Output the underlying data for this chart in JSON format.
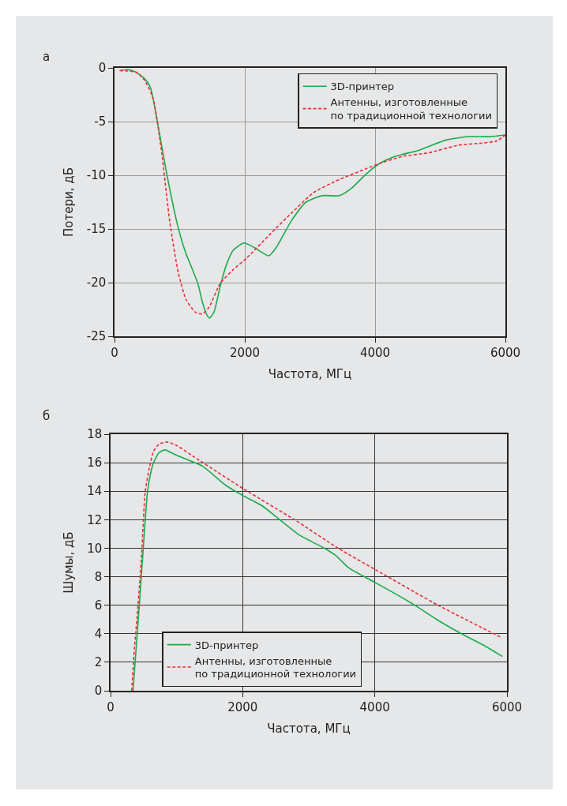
{
  "chart_data": [
    {
      "type": "line",
      "title": "а",
      "xlabel": "Частота, МГц",
      "ylabel": "Потери, дБ",
      "xlim": [
        0,
        6000
      ],
      "xticks": [
        0,
        2000,
        4000,
        6000
      ],
      "ylim": [
        -25,
        0
      ],
      "yticks": [
        0,
        -5,
        -10,
        -15,
        -20,
        -25
      ],
      "grid": true,
      "legend": "top right",
      "series": [
        {
          "name": "3D-принтер",
          "color": "#1aab4b",
          "line_style": "solid",
          "x": [
            80,
            200,
            330,
            460,
            550,
            640,
            790,
            970,
            1080,
            1280,
            1340,
            1400,
            1460,
            1530,
            1620,
            1720,
            1820,
            1990,
            2150,
            2370,
            2480,
            2720,
            2940,
            3190,
            3450,
            3640,
            3860,
            4070,
            4300,
            4660,
            4830,
            5100,
            5440,
            5760,
            6000
          ],
          "values": [
            -0.26,
            -0.15,
            -0.4,
            -1.0,
            -1.8,
            -4.4,
            -9.5,
            -14.7,
            -17.0,
            -20.1,
            -21.6,
            -22.8,
            -23.3,
            -22.7,
            -20.4,
            -18.3,
            -17.0,
            -16.3,
            -16.75,
            -17.5,
            -16.75,
            -14.2,
            -12.5,
            -11.9,
            -11.9,
            -11.2,
            -9.9,
            -8.9,
            -8.25,
            -7.7,
            -7.3,
            -6.7,
            -6.4,
            -6.4,
            -6.25
          ]
        },
        {
          "name": "Антенны, изготовленные\nпо традиционной технологии",
          "color": "#e8303a",
          "line_style": "dashed",
          "x": [
            80,
            330,
            460,
            590,
            720,
            850,
            980,
            1100,
            1250,
            1350,
            1450,
            1620,
            1820,
            2030,
            2370,
            2720,
            3060,
            3450,
            3860,
            4070,
            4420,
            4830,
            5280,
            5650,
            5870,
            6000
          ],
          "values": [
            -0.26,
            -0.4,
            -1.15,
            -2.8,
            -7.7,
            -14.4,
            -19.1,
            -21.6,
            -22.8,
            -22.9,
            -22.3,
            -20.1,
            -18.8,
            -17.7,
            -15.6,
            -13.5,
            -11.6,
            -10.4,
            -9.4,
            -8.9,
            -8.25,
            -7.9,
            -7.2,
            -7.0,
            -6.8,
            -6.25
          ]
        }
      ]
    },
    {
      "type": "line",
      "title": "б",
      "xlabel": "Частота, МГц",
      "ylabel": "Шумы, дБ",
      "xlim": [
        0,
        6000
      ],
      "xticks": [
        0,
        2000,
        4000,
        6000
      ],
      "ylim": [
        0,
        18
      ],
      "yticks": [
        0,
        2,
        4,
        6,
        8,
        10,
        12,
        14,
        16,
        18
      ],
      "grid": true,
      "legend": "bottom left",
      "series": [
        {
          "name": "3D-принтер",
          "color": "#1aab4b",
          "line_style": "solid",
          "x": [
            340,
            435,
            525,
            560,
            595,
            650,
            733,
            824,
            960,
            1250,
            1395,
            1747,
            2000,
            2286,
            2534,
            2865,
            3238,
            3404,
            3611,
            3960,
            4273,
            4605,
            4936,
            5309,
            5681,
            5930
          ],
          "values": [
            0,
            6,
            12,
            14,
            15,
            16,
            16.7,
            16.9,
            16.6,
            16.05,
            15.75,
            14.4,
            13.7,
            13.0,
            12.1,
            10.9,
            10.0,
            9.5,
            8.6,
            7.7,
            6.9,
            6.0,
            5.0,
            4.0,
            3.1,
            2.4
          ]
        },
        {
          "name": "Антенны, изготовленные\nпо традиционной технологии",
          "color": "#e8303a",
          "line_style": "dashed",
          "x": [
            320,
            360,
            402,
            464,
            525,
            588,
            650,
            733,
            857,
            1002,
            1250,
            2000,
            2783,
            3445,
            4025,
            4977,
            5909
          ],
          "values": [
            0,
            2.9,
            5.2,
            9.05,
            14.0,
            15.65,
            16.8,
            17.3,
            17.45,
            17.2,
            16.45,
            14.2,
            12.0,
            10.0,
            8.45,
            5.95,
            3.75
          ]
        }
      ]
    }
  ]
}
